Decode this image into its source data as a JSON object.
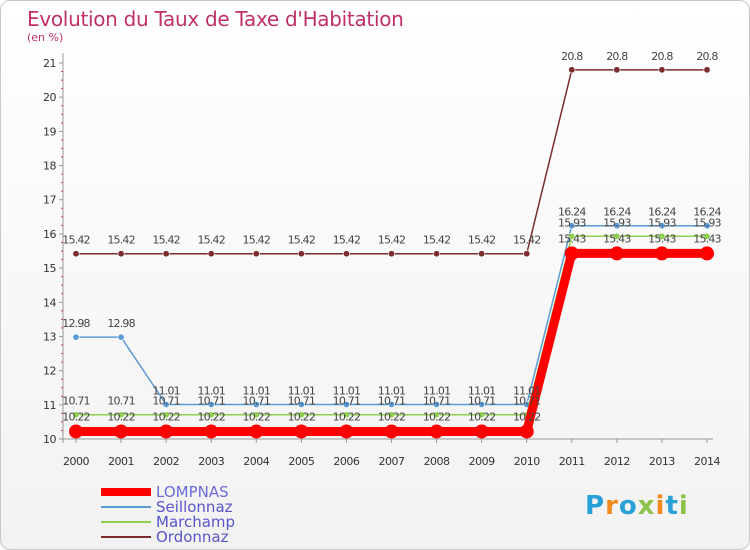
{
  "title": "Evolution du Taux de Taxe d'Habitation",
  "subtitle": "(en %)",
  "logo": {
    "text": "Proxiti",
    "colors": [
      "#2aa0d8",
      "#f28a1e",
      "#2aa0d8",
      "#8bc34a",
      "#f28a1e",
      "#2aa0d8",
      "#8bc34a"
    ]
  },
  "chart_data": {
    "type": "line",
    "x": [
      2000,
      2001,
      2002,
      2003,
      2004,
      2005,
      2006,
      2007,
      2008,
      2009,
      2010,
      2011,
      2012,
      2013,
      2014
    ],
    "ylim": [
      10,
      21
    ],
    "yticks": [
      10,
      11,
      12,
      13,
      14,
      15,
      16,
      17,
      18,
      19,
      20,
      21
    ],
    "grid": false,
    "legend": "bottom-left",
    "series": [
      {
        "name": "LOMPNAS",
        "color": "#ff0000",
        "values": [
          10.22,
          10.22,
          10.22,
          10.22,
          10.22,
          10.22,
          10.22,
          10.22,
          10.22,
          10.22,
          10.22,
          15.43,
          15.43,
          15.43,
          15.43
        ],
        "labels": [
          "",
          "",
          "",
          "",
          "",
          "",
          "",
          "",
          "",
          "",
          "",
          "",
          "",
          "",
          ""
        ]
      },
      {
        "name": "Seillonnaz",
        "color": "#5b9bd5",
        "values": [
          12.98,
          12.98,
          11.01,
          11.01,
          11.01,
          11.01,
          11.01,
          11.01,
          11.01,
          11.01,
          11.01,
          16.24,
          16.24,
          16.24,
          16.24
        ],
        "labels": [
          "12.98",
          "12.98",
          "11.01",
          "11.01",
          "11.01",
          "11.01",
          "11.01",
          "11.01",
          "11.01",
          "11.01",
          "11.01",
          "16.24",
          "16.24",
          "16.24",
          "16.24"
        ]
      },
      {
        "name": "Marchamp",
        "color": "#90d050",
        "values": [
          10.71,
          10.71,
          10.71,
          10.71,
          10.71,
          10.71,
          10.71,
          10.71,
          10.71,
          10.71,
          10.71,
          15.93,
          15.93,
          15.93,
          15.93
        ],
        "labels": [
          "10.71",
          "10.71",
          "10.71",
          "10.71",
          "10.71",
          "10.71",
          "10.71",
          "10.71",
          "10.71",
          "10.71",
          "10.71",
          "15.93",
          "15.93",
          "15.93",
          "15.93"
        ]
      },
      {
        "name": "Ordonnaz",
        "color": "#7b2c2c",
        "values": [
          15.42,
          15.42,
          15.42,
          15.42,
          15.42,
          15.42,
          15.42,
          15.42,
          15.42,
          15.42,
          15.42,
          20.8,
          20.8,
          20.8,
          20.8
        ],
        "labels": [
          "15.42",
          "15.42",
          "15.42",
          "15.42",
          "15.42",
          "15.42",
          "15.42",
          "15.42",
          "15.42",
          "15.42",
          "15.42",
          "20.8",
          "20.8",
          "20.8",
          "20.8"
        ]
      }
    ],
    "extra_labels": {
      "series": "LOMPNAS",
      "labels": [
        "10.22",
        "10.22",
        "10.22",
        "10.22",
        "10.22",
        "10.22",
        "10.22",
        "10.22",
        "10.22",
        "10.22",
        "10.22",
        "15.43",
        "15.43",
        "15.43",
        "15.43"
      ]
    }
  }
}
